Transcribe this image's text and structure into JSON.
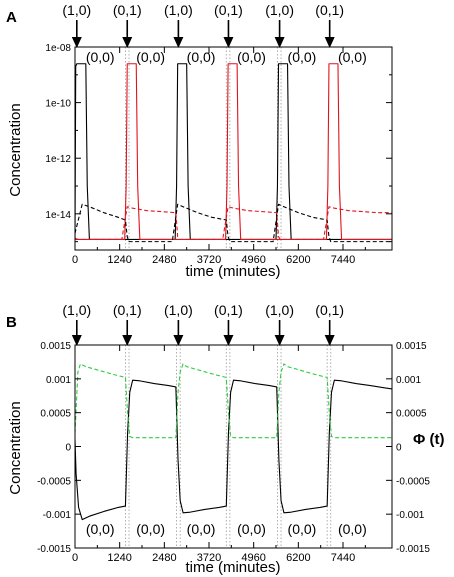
{
  "chart_data": [
    {
      "type": "line",
      "panel_label": "A",
      "ylabel": "Concentration",
      "xlabel": "time (minutes)",
      "yscale": "log",
      "xlim": [
        0,
        8800
      ],
      "ylim": [
        5e-16,
        1e-08
      ],
      "x_ticks": [
        "0",
        "1240",
        "2480",
        "3720",
        "4960",
        "6200",
        "7440"
      ],
      "x_tick_values": [
        0,
        1240,
        2480,
        3720,
        4960,
        6200,
        7440
      ],
      "y_ticks": [
        "1e-08",
        "1e-10",
        "1e-12",
        "1e-14"
      ],
      "y_tick_values": [
        1e-08,
        1e-10,
        1e-12,
        1e-14
      ],
      "grid": false,
      "input_events": [
        {
          "label": "(1,0)",
          "x": 50
        },
        {
          "label": "(0,1)",
          "x": 1450
        },
        {
          "label": "(1,0)",
          "x": 2870
        },
        {
          "label": "(0,1)",
          "x": 4260
        },
        {
          "label": "(1,0)",
          "x": 5680
        },
        {
          "label": "(0,1)",
          "x": 7070
        }
      ],
      "state_labels": [
        {
          "label": "(0,0)",
          "x": 700
        },
        {
          "label": "(0,0)",
          "x": 2100
        },
        {
          "label": "(0,0)",
          "x": 3500
        },
        {
          "label": "(0,0)",
          "x": 4900
        },
        {
          "label": "(0,0)",
          "x": 6300
        },
        {
          "label": "(0,0)",
          "x": 7700
        }
      ],
      "state_label_position": "top",
      "dotted_lines_x": [
        1400,
        1500,
        4200,
        4300,
        5620,
        5720
      ],
      "series": [
        {
          "style": "solid",
          "color": "#000000",
          "x": [
            0,
            20,
            50,
            300,
            340,
            400,
            2780,
            2820,
            2850,
            3100,
            3140,
            3200,
            5580,
            5620,
            5650,
            5900,
            5940,
            6000,
            8800
          ],
          "values": [
            1.2e-15,
            2e-09,
            2.5e-09,
            2.5e-09,
            1e-13,
            1.2e-15,
            1.2e-15,
            1e-13,
            2.5e-09,
            2.5e-09,
            1e-13,
            1.2e-15,
            1.2e-15,
            1e-13,
            2.5e-09,
            2.5e-09,
            1e-13,
            1.2e-15,
            1.2e-15
          ]
        },
        {
          "style": "solid",
          "color": "#e0141e",
          "x": [
            0,
            1380,
            1420,
            1450,
            1700,
            1740,
            1800,
            4180,
            4220,
            4250,
            4500,
            4540,
            4600,
            6980,
            7020,
            7050,
            7300,
            7340,
            7400,
            8800
          ],
          "values": [
            1.2e-15,
            1.2e-15,
            1e-13,
            2.5e-09,
            2.5e-09,
            1e-13,
            1.2e-15,
            1.2e-15,
            1e-13,
            2.5e-09,
            2.5e-09,
            1e-13,
            1.2e-15,
            1.2e-15,
            1e-13,
            2.5e-09,
            2.5e-09,
            1e-13,
            1.2e-15,
            1.2e-15
          ]
        },
        {
          "style": "dashed",
          "color": "#000000",
          "x": [
            0,
            200,
            400,
            800,
            1200,
            1400,
            1450,
            1500,
            2700,
            2850,
            3000,
            3400,
            3800,
            4200,
            4250,
            4300,
            5500,
            5650,
            5800,
            6200,
            6600,
            7000,
            7050,
            7100,
            8800
          ],
          "values": [
            2e-15,
            2.2e-14,
            1.8e-14,
            1.1e-14,
            7.5e-15,
            6e-15,
            1.5e-15,
            1e-15,
            1e-15,
            2.2e-14,
            1.8e-14,
            1.1e-14,
            7.5e-15,
            6e-15,
            1.5e-15,
            1e-15,
            1e-15,
            2.2e-14,
            1.8e-14,
            1.1e-14,
            7.5e-15,
            6e-15,
            1.5e-15,
            1e-15,
            1e-15
          ]
        },
        {
          "style": "dashed",
          "color": "#e0141e",
          "x": [
            0,
            100,
            1300,
            1450,
            1600,
            2000,
            2400,
            2800,
            2850,
            2900,
            4100,
            4250,
            4400,
            4800,
            5200,
            5600,
            5650,
            5700,
            6900,
            7050,
            7200,
            7600,
            8000,
            8400,
            8800
          ],
          "values": [
            1.3e-15,
            1.2e-15,
            1.2e-15,
            1.8e-14,
            1.6e-14,
            1.3e-14,
            1.2e-14,
            1.1e-14,
            1.5e-15,
            1.2e-15,
            1.2e-15,
            1.8e-14,
            1.6e-14,
            1.3e-14,
            1.2e-14,
            1.1e-14,
            1.5e-15,
            1.2e-15,
            1.2e-15,
            1.8e-14,
            1.6e-14,
            1.3e-14,
            1.2e-14,
            1.1e-14,
            1.1e-14
          ]
        }
      ]
    },
    {
      "type": "line",
      "panel_label": "B",
      "ylabel": "Concentration",
      "ylabel_right": "Φ (t)",
      "xlabel": "time (minutes)",
      "xlim": [
        0,
        8800
      ],
      "ylim": [
        -0.0015,
        0.0015
      ],
      "x_ticks": [
        "0",
        "1240",
        "2480",
        "3720",
        "4960",
        "6200",
        "7440"
      ],
      "x_tick_values": [
        0,
        1240,
        2480,
        3720,
        4960,
        6200,
        7440
      ],
      "y_ticks": [
        "0.0015",
        "0.001",
        "0.0005",
        "0",
        "-0.0005",
        "-0.001",
        "-0.0015"
      ],
      "y_tick_values": [
        0.0015,
        0.001,
        0.0005,
        0,
        -0.0005,
        -0.001,
        -0.0015
      ],
      "y2_ticks": [
        "0.0015",
        "0.001",
        "0.0005",
        "0",
        "-0.0005",
        "-0.001",
        "-0.0015"
      ],
      "grid": false,
      "input_events": [
        {
          "label": "(1,0)",
          "x": 50
        },
        {
          "label": "(0,1)",
          "x": 1450
        },
        {
          "label": "(1,0)",
          "x": 2870
        },
        {
          "label": "(0,1)",
          "x": 4260
        },
        {
          "label": "(1,0)",
          "x": 5680
        },
        {
          "label": "(0,1)",
          "x": 7070
        }
      ],
      "state_labels": [
        {
          "label": "(0,0)",
          "x": 700
        },
        {
          "label": "(0,0)",
          "x": 2100
        },
        {
          "label": "(0,0)",
          "x": 3500
        },
        {
          "label": "(0,0)",
          "x": 4900
        },
        {
          "label": "(0,0)",
          "x": 6300
        },
        {
          "label": "(0,0)",
          "x": 7700
        }
      ],
      "state_label_position": "bottom",
      "dotted_lines_x": [
        1400,
        1500,
        2820,
        2920,
        4200,
        4300,
        5620,
        5720,
        7000,
        7100
      ],
      "series": [
        {
          "style": "solid",
          "color": "#000000",
          "x": [
            0,
            30,
            100,
            200,
            400,
            800,
            1200,
            1400,
            1460,
            1520,
            1600,
            1800,
            2200,
            2600,
            2800,
            2860,
            2920,
            3000,
            3200,
            3600,
            4000,
            4200,
            4260,
            4320,
            4400,
            4600,
            5000,
            5400,
            5600,
            5660,
            5720,
            5800,
            6000,
            6400,
            6800,
            7000,
            7060,
            7120,
            7200,
            7400,
            7800,
            8200,
            8800
          ],
          "values": [
            0.0001,
            -0.0004,
            -0.0009,
            -0.00108,
            -0.00103,
            -0.00096,
            -0.0009,
            -0.00088,
            0.0002,
            0.0008,
            0.00098,
            0.00097,
            0.00093,
            0.0009,
            0.00088,
            -0.0002,
            -0.0008,
            -0.00098,
            -0.00097,
            -0.00093,
            -0.0009,
            -0.00088,
            0.0002,
            0.0008,
            0.00098,
            0.00097,
            0.00093,
            0.0009,
            0.00088,
            -0.0002,
            -0.0008,
            -0.00098,
            -0.00097,
            -0.00093,
            -0.0009,
            -0.00088,
            0.0002,
            0.0008,
            0.00098,
            0.00097,
            0.00093,
            0.0009,
            0.00085
          ]
        },
        {
          "style": "dashed",
          "color": "#2ecc40",
          "x": [
            0,
            80,
            150,
            300,
            700,
            1100,
            1400,
            1460,
            1520,
            1600,
            2800,
            2860,
            2920,
            3000,
            3100,
            3500,
            3900,
            4200,
            4260,
            4320,
            4400,
            5600,
            5660,
            5720,
            5800,
            5900,
            6300,
            6700,
            7000,
            7060,
            7120,
            7200,
            8800
          ],
          "values": [
            0.0002,
            0.0011,
            0.00122,
            0.00118,
            0.00112,
            0.00106,
            0.00102,
            0.0005,
            0.00015,
            0.00013,
            0.00013,
            0.0008,
            0.0011,
            0.00122,
            0.00118,
            0.00112,
            0.00106,
            0.00102,
            0.0005,
            0.00015,
            0.00013,
            0.00013,
            0.0008,
            0.0011,
            0.00122,
            0.00118,
            0.00112,
            0.00106,
            0.00102,
            0.0005,
            0.00015,
            0.00013,
            0.00013
          ]
        }
      ]
    }
  ]
}
